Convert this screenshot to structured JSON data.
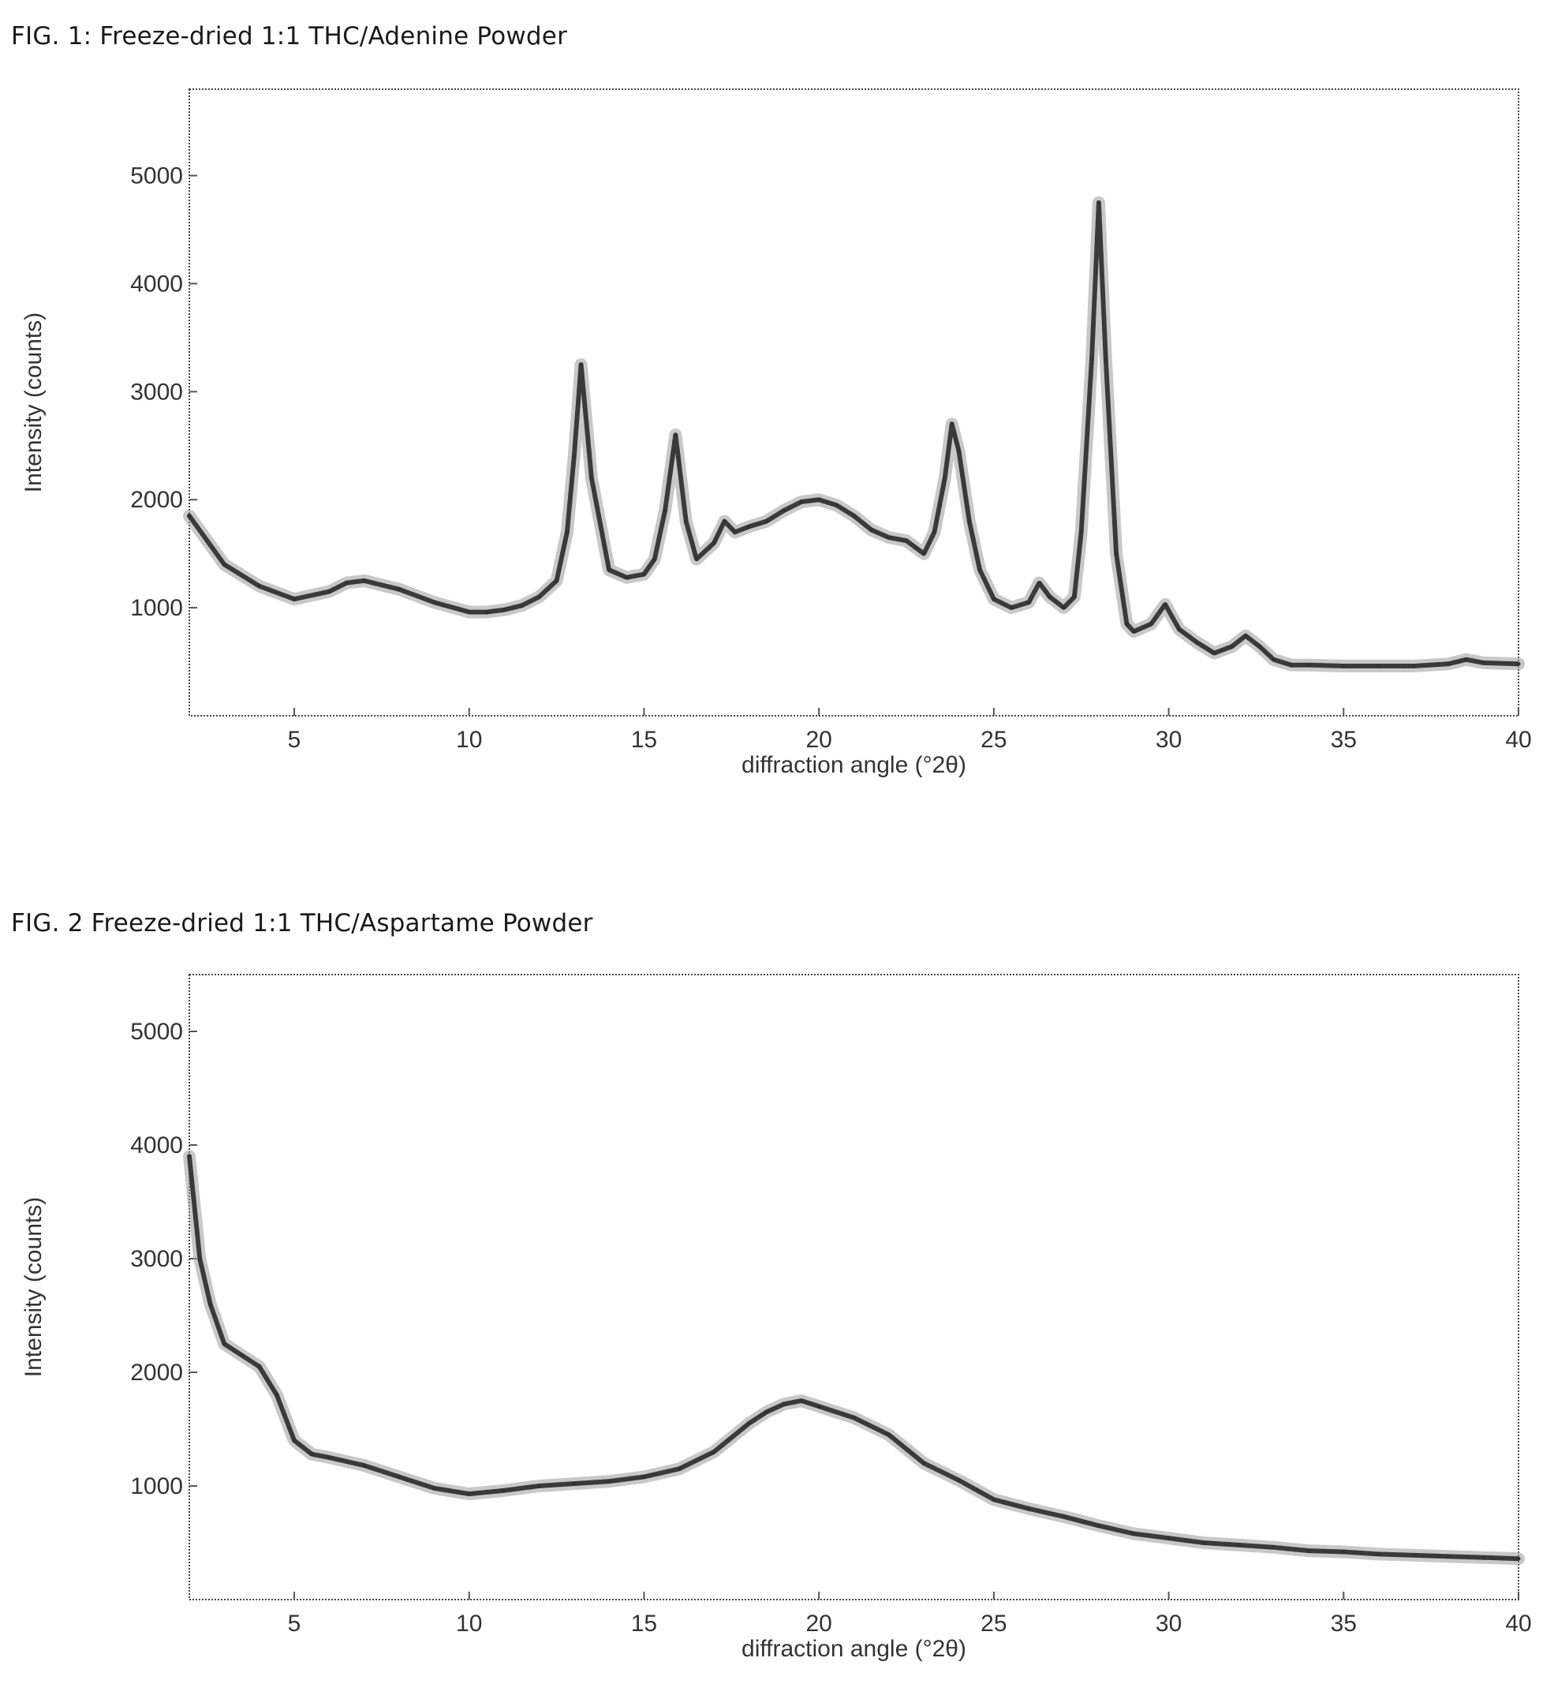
{
  "figures": [
    {
      "title": "FIG. 1: Freeze-dried 1:1 THC/Adenine Powder"
    },
    {
      "title": "FIG. 2 Freeze-dried 1:1 THC/Aspartame Powder"
    }
  ],
  "chart_data": [
    {
      "type": "line",
      "title": "FIG. 1: Freeze-dried 1:1 THC/Adenine Powder",
      "xlabel": "diffraction angle (°2θ)",
      "ylabel": "Intensity (counts)",
      "xlim": [
        2,
        40
      ],
      "ylim": [
        0,
        5800
      ],
      "xticks": [
        5,
        10,
        15,
        20,
        25,
        30,
        35,
        40
      ],
      "yticks": [
        1000,
        2000,
        3000,
        4000,
        5000
      ],
      "grid": false,
      "series": [
        {
          "x": [
            2,
            3,
            4,
            5,
            6,
            6.5,
            7,
            8,
            9,
            10,
            10.5,
            11,
            11.5,
            12,
            12.5,
            12.8,
            13.0,
            13.2,
            13.5,
            14,
            14.5,
            15,
            15.3,
            15.6,
            15.9,
            16.2,
            16.5,
            17,
            17.3,
            17.6,
            18,
            18.5,
            19,
            19.5,
            20,
            20.5,
            21,
            21.5,
            22,
            22.5,
            23,
            23.3,
            23.6,
            23.8,
            24.0,
            24.3,
            24.6,
            25,
            25.5,
            26,
            26.3,
            26.6,
            27,
            27.3,
            27.5,
            27.8,
            28.0,
            28.2,
            28.5,
            28.8,
            29,
            29.5,
            29.9,
            30.3,
            30.8,
            31.3,
            31.8,
            32.2,
            32.6,
            33,
            33.5,
            34,
            35,
            36,
            37,
            38,
            38.5,
            39,
            40
          ],
          "y": [
            1850,
            1400,
            1200,
            1080,
            1150,
            1230,
            1250,
            1170,
            1050,
            960,
            960,
            980,
            1020,
            1100,
            1250,
            1700,
            2400,
            3250,
            2200,
            1350,
            1280,
            1310,
            1450,
            1900,
            2600,
            1800,
            1450,
            1600,
            1800,
            1700,
            1750,
            1800,
            1900,
            1980,
            2000,
            1950,
            1850,
            1720,
            1650,
            1620,
            1500,
            1700,
            2200,
            2700,
            2450,
            1800,
            1350,
            1080,
            1000,
            1050,
            1230,
            1100,
            1000,
            1100,
            1700,
            3300,
            4750,
            3300,
            1500,
            850,
            780,
            850,
            1030,
            800,
            680,
            580,
            640,
            740,
            640,
            520,
            470,
            470,
            460,
            460,
            460,
            480,
            520,
            490,
            480
          ]
        }
      ]
    },
    {
      "type": "line",
      "title": "FIG. 2 Freeze-dried 1:1 THC/Aspartame Powder",
      "xlabel": "diffraction angle (°2θ)",
      "ylabel": "Intensity (counts)",
      "xlim": [
        2,
        40
      ],
      "ylim": [
        0,
        5500
      ],
      "xticks": [
        5,
        10,
        15,
        20,
        25,
        30,
        35,
        40
      ],
      "yticks": [
        1000,
        2000,
        3000,
        4000,
        5000
      ],
      "grid": false,
      "series": [
        {
          "x": [
            2,
            2.3,
            2.6,
            3,
            3.5,
            4,
            4.5,
            5,
            5.5,
            6,
            7,
            8,
            9,
            10,
            11,
            12,
            13,
            14,
            15,
            16,
            17,
            18,
            18.5,
            19,
            19.5,
            20,
            21,
            22,
            23,
            24,
            25,
            26,
            27,
            28,
            29,
            30,
            31,
            32,
            33,
            34,
            35,
            36,
            37,
            38,
            39,
            40
          ],
          "y": [
            3900,
            3000,
            2600,
            2250,
            2150,
            2050,
            1800,
            1400,
            1280,
            1250,
            1180,
            1080,
            980,
            930,
            960,
            1000,
            1020,
            1040,
            1080,
            1150,
            1300,
            1550,
            1650,
            1720,
            1750,
            1700,
            1600,
            1450,
            1200,
            1050,
            880,
            800,
            730,
            650,
            580,
            540,
            500,
            480,
            460,
            430,
            420,
            400,
            390,
            380,
            370,
            360
          ]
        }
      ]
    }
  ]
}
